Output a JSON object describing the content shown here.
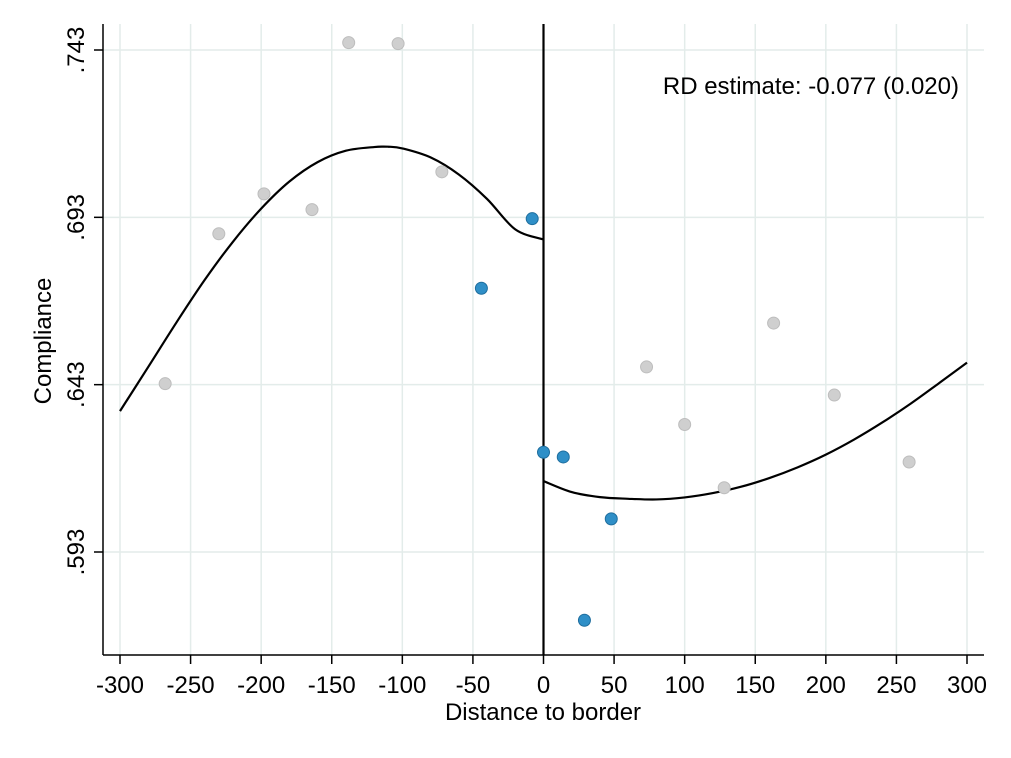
{
  "chart_data": {
    "type": "scatter",
    "title": "",
    "xlabel": "Distance to border",
    "ylabel": "Compliance",
    "xlim": [
      -300,
      300
    ],
    "ylim": [
      0.563,
      0.748
    ],
    "x_ticks": [
      -300,
      -250,
      -200,
      -150,
      -100,
      -50,
      0,
      50,
      100,
      150,
      200,
      250,
      300
    ],
    "x_tick_labels": [
      "-300",
      "-250",
      "-200",
      "-150",
      "-100",
      "-50",
      "0",
      "50",
      "100",
      "150",
      "200",
      "250",
      "300"
    ],
    "y_ticks": [
      0.593,
      0.643,
      0.693,
      0.743
    ],
    "y_tick_labels": [
      ".593",
      ".643",
      ".693",
      ".743"
    ],
    "grid": true,
    "cutoff": 0,
    "annotation": "RD estimate: -0.077 (0.020)",
    "colors": {
      "gray_points": "#cfcfcf",
      "blue_points": "#2f8fc7",
      "blue_points_edge": "#1f6e9e",
      "fit_line": "#000000",
      "grid": "#e3ecea"
    },
    "series": [
      {
        "color": "gray",
        "x": [
          -268,
          -230,
          -198,
          -164,
          -138,
          -103,
          -72,
          73,
          100,
          128,
          163,
          206,
          259
        ],
        "y": [
          0.6433,
          0.6881,
          0.7,
          0.6953,
          0.7452,
          0.7449,
          0.7066,
          0.6483,
          0.6311,
          0.6122,
          0.6614,
          0.6399,
          0.6199
        ]
      },
      {
        "color": "blue",
        "x": [
          -44,
          -8,
          0,
          14,
          29,
          48
        ],
        "y": [
          0.6718,
          0.6926,
          0.6228,
          0.6214,
          0.5726,
          0.6029
        ]
      }
    ],
    "fit_lines": [
      {
        "segment": "left",
        "x": [
          -300,
          -280,
          -260,
          -240,
          -220,
          -200,
          -180,
          -160,
          -140,
          -120,
          -110,
          -100,
          -80,
          -60,
          -40,
          -20,
          0
        ],
        "y": [
          0.6351,
          0.6483,
          0.6616,
          0.6743,
          0.6857,
          0.6956,
          0.7037,
          0.7095,
          0.7129,
          0.714,
          0.7141,
          0.7136,
          0.7109,
          0.7058,
          0.6985,
          0.6894,
          0.6864
        ]
      },
      {
        "segment": "right",
        "x": [
          0,
          20,
          40,
          60,
          80,
          100,
          120,
          140,
          160,
          180,
          200,
          220,
          240,
          260,
          280,
          300
        ],
        "y": [
          0.6142,
          0.6109,
          0.6094,
          0.6089,
          0.6087,
          0.6093,
          0.6106,
          0.6125,
          0.6151,
          0.6183,
          0.6221,
          0.6266,
          0.6317,
          0.6373,
          0.6434,
          0.6496
        ]
      }
    ]
  }
}
